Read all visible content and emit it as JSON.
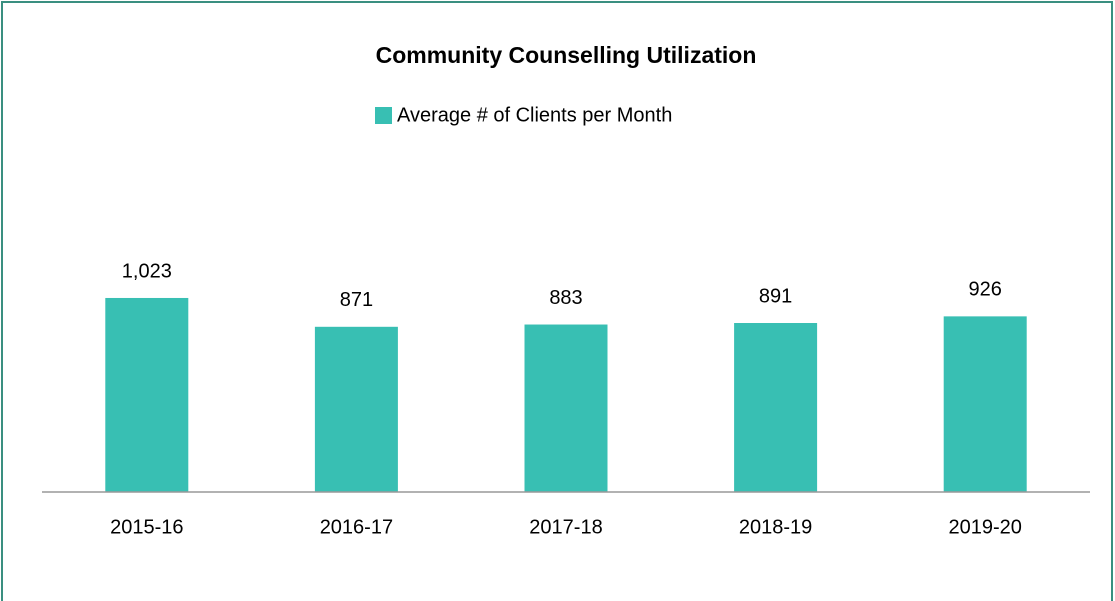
{
  "chart_data": {
    "type": "bar",
    "title": "Community Counselling Utilization",
    "series": [
      {
        "name": "Average # of Clients per Month",
        "color": "#38bfb3",
        "values": [
          1023,
          871,
          883,
          891,
          926
        ],
        "value_labels": [
          "1,023",
          "871",
          "883",
          "891",
          "926"
        ]
      }
    ],
    "categories": [
      "2015-16",
      "2016-17",
      "2017-18",
      "2018-19",
      "2019-20"
    ],
    "ylim": [
      0,
      1200
    ]
  }
}
